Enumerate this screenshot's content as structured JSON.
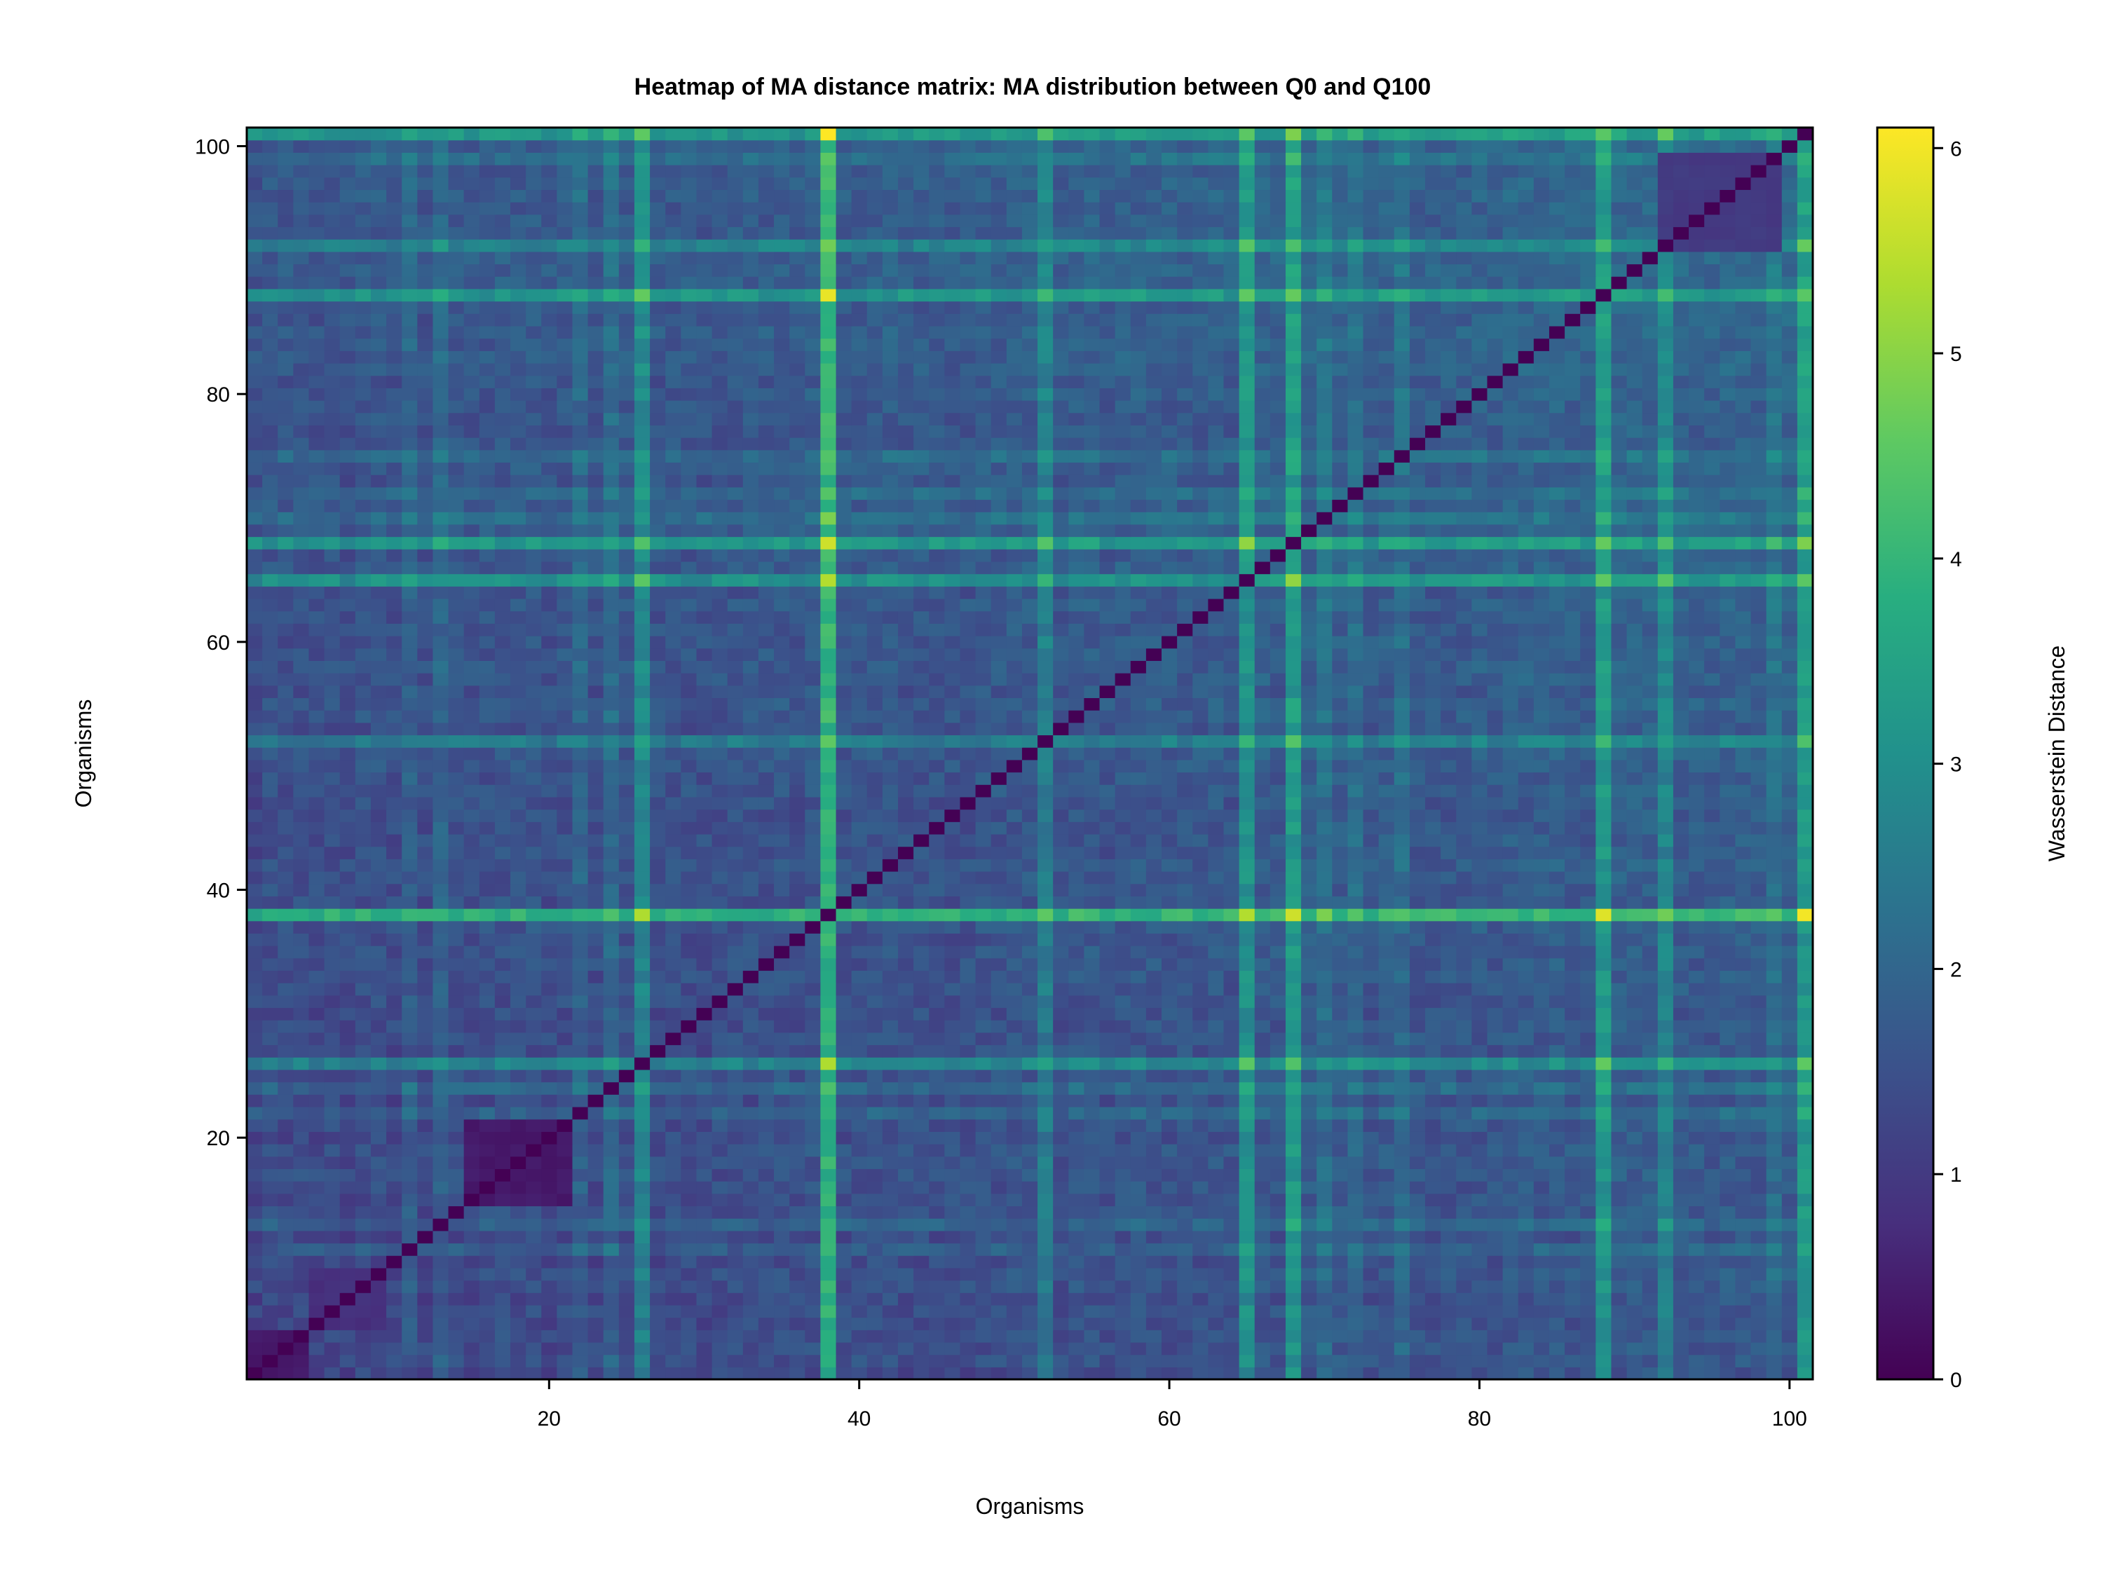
{
  "chart_data": {
    "type": "heatmap",
    "title": "Heatmap of MA distance matrix: MA distribution between Q0 and Q100",
    "xlabel": "Organisms",
    "ylabel": "Organisms",
    "colorbar_label": "Wasserstein Distance",
    "n": 101,
    "xlim": [
      0.5,
      101.5
    ],
    "ylim": [
      0.5,
      101.5
    ],
    "x_ticks": [
      20,
      40,
      60,
      80,
      100
    ],
    "y_ticks": [
      20,
      40,
      60,
      80,
      100
    ],
    "colorbar_range": [
      0,
      6.1
    ],
    "colorbar_ticks": [
      0,
      1,
      2,
      3,
      4,
      5,
      6
    ],
    "colormap": "viridis",
    "diagonal_value": 0,
    "background_level": 1.5,
    "row_offsets": {
      "26": 1.3,
      "38": 2.4,
      "52": 1.0,
      "65": 1.5,
      "68": 1.6,
      "88": 1.5,
      "92": 1.0,
      "101": 1.5,
      "11": 0.4,
      "13": 0.5,
      "22": 0.5,
      "24": 0.6,
      "70": 0.6,
      "72": 0.5,
      "75": 0.5,
      "99": 0.5
    },
    "clusters": [
      {
        "from": 1,
        "to": 4,
        "value": 0.3
      },
      {
        "from": 5,
        "to": 9,
        "value": 0.7
      },
      {
        "from": 15,
        "to": 21,
        "value": 0.3
      },
      {
        "from": 92,
        "to": 99,
        "value": 0.9
      }
    ],
    "peaks": [
      {
        "row": 38,
        "col": 38,
        "value": 0
      },
      {
        "row": 38,
        "col": 101,
        "value": 6.0
      },
      {
        "row": 38,
        "col": 88,
        "value": 5.8
      },
      {
        "row": 88,
        "col": 38,
        "value": 5.9
      },
      {
        "row": 101,
        "col": 38,
        "value": 6.1
      }
    ]
  }
}
